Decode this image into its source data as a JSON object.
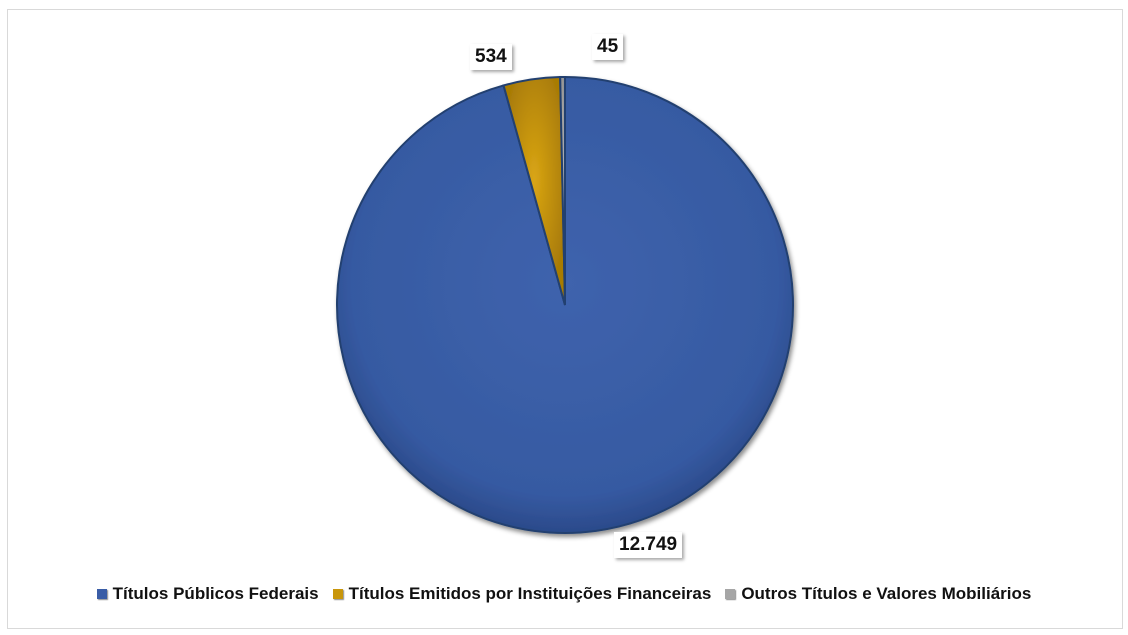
{
  "chart_data": {
    "type": "pie",
    "categories": [
      "Títulos Públicos Federais",
      "Títulos Emitidos por Instituições Financeiras",
      "Outros Títulos e Valores Mobiliários"
    ],
    "values": [
      12749,
      534,
      45
    ],
    "data_labels": [
      "12.749",
      "534",
      "45"
    ],
    "colors": [
      "#3a5da6",
      "#c8960c",
      "#a6a6a6"
    ],
    "legend_position": "bottom",
    "title": ""
  }
}
